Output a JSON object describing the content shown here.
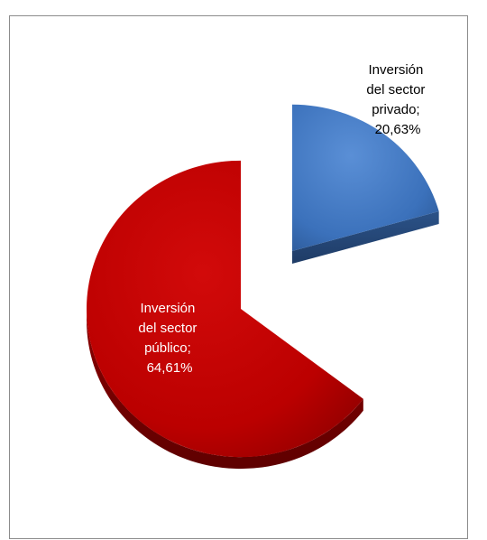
{
  "chart_data": {
    "type": "pie",
    "style": "3d-exploded",
    "title": "",
    "legend": "none",
    "slices": [
      {
        "name_lines": [
          "Inversión",
          "del sector",
          "público;"
        ],
        "value_label": "64,61%",
        "value": 64.61,
        "color": "#c00000",
        "label_color": "#ffffff"
      },
      {
        "name_lines": [
          "Inversión",
          "del sector",
          "privado;"
        ],
        "value_label": "20,63%",
        "value": 20.63,
        "color": "#3c74bf",
        "label_color": "#000000"
      }
    ],
    "unlabeled_remainder": {
      "value": 14.76,
      "visible": false
    }
  }
}
